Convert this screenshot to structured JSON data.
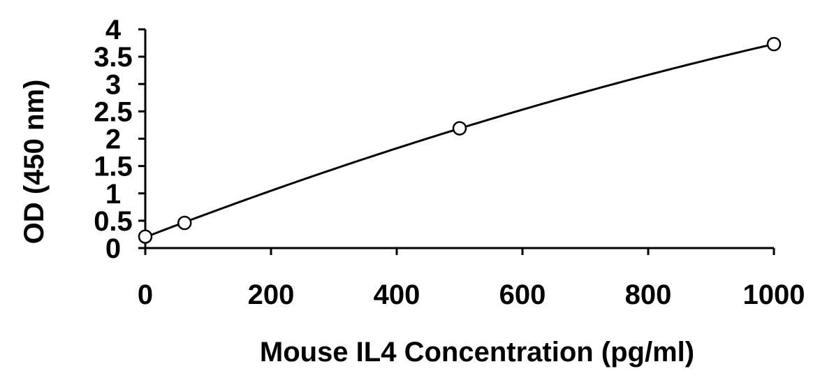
{
  "chart_data": {
    "type": "scatter",
    "title": "",
    "xlabel": "Mouse IL4 Concentration (pg/ml)",
    "ylabel": "OD (450 nm)",
    "xlim": [
      0,
      1000
    ],
    "ylim": [
      0,
      4
    ],
    "xticks": [
      "0",
      "200",
      "400",
      "600",
      "800",
      "1000"
    ],
    "yticks": [
      "0",
      "0.5",
      "1",
      "1.5",
      "2",
      "2.5",
      "3",
      "3.5",
      "4"
    ],
    "grid": false,
    "legend": "none",
    "marker": "open-circle",
    "fit_line": "smooth-curve",
    "series": [
      {
        "x": [
          0,
          62.5,
          500,
          1000
        ],
        "y": [
          0.21,
          0.46,
          2.19,
          3.73
        ]
      }
    ],
    "colors": {
      "marker": "#000000",
      "line": "#000000",
      "axis": "#000000"
    }
  }
}
